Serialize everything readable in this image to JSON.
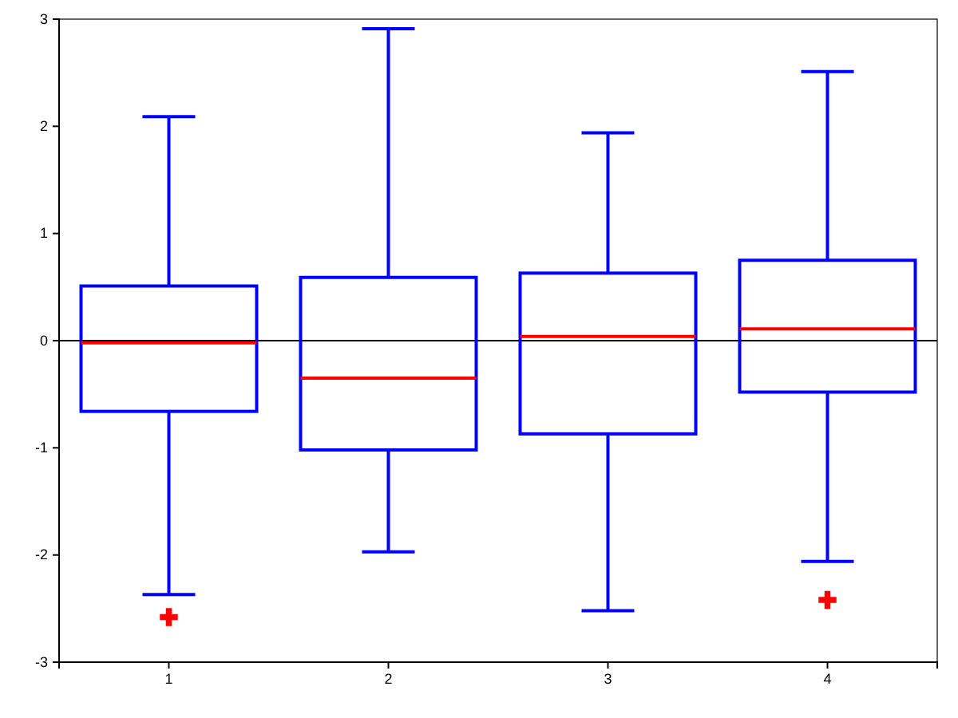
{
  "chart_data": {
    "type": "box",
    "categories": [
      "1",
      "2",
      "3",
      "4"
    ],
    "boxes": [
      {
        "low": -2.37,
        "q1": -0.66,
        "median": -0.02,
        "q3": 0.51,
        "high": 2.09,
        "outliers": [
          -2.58
        ]
      },
      {
        "low": -1.97,
        "q1": -1.02,
        "median": -0.35,
        "q3": 0.59,
        "high": 2.91
      },
      {
        "low": -2.52,
        "q1": -0.87,
        "median": 0.04,
        "q3": 0.63,
        "high": 1.94
      },
      {
        "low": -2.06,
        "q1": -0.48,
        "median": 0.11,
        "q3": 0.75,
        "high": 2.51,
        "outliers": [
          -2.42
        ]
      }
    ],
    "color": "#0000ff",
    "marker": "cross",
    "ylim": [
      -3,
      3
    ],
    "yticks": [
      -3,
      -2,
      -1,
      0,
      1,
      2,
      3
    ],
    "ref_lines": [
      {
        "axis": "y",
        "value": 0,
        "color": "#000000"
      }
    ]
  }
}
